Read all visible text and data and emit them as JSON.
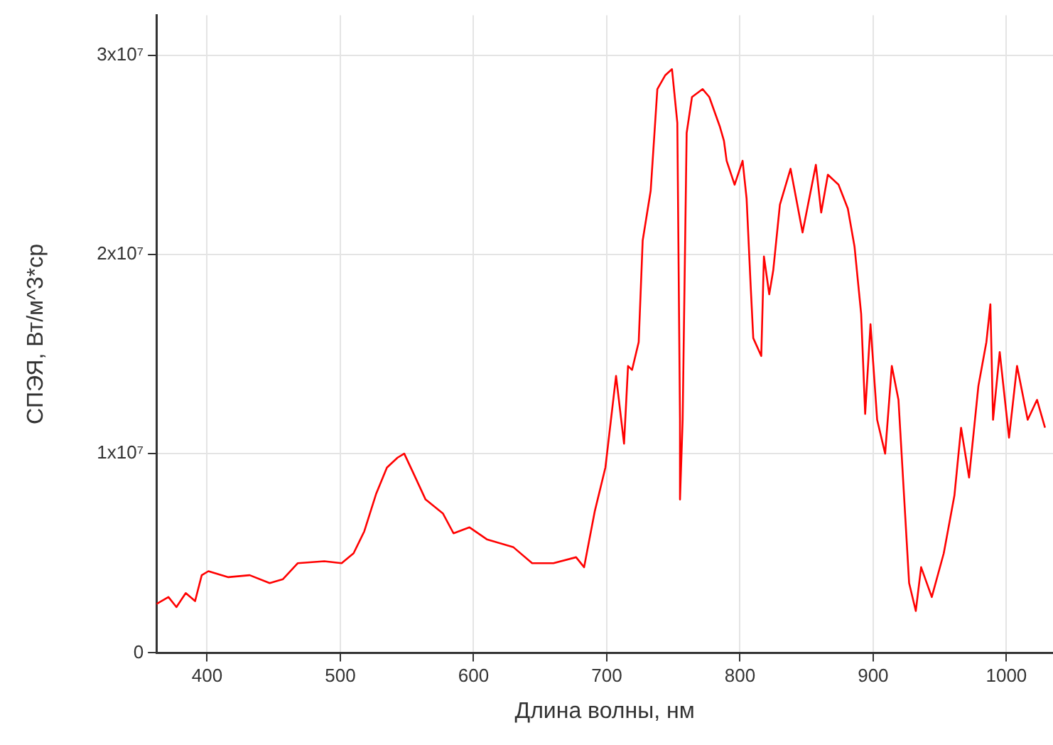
{
  "chart_data": {
    "type": "line",
    "xlabel": "Длина волны, нм",
    "ylabel": "СПЭЯ, Вт/м^3*ср",
    "xlim": [
      362,
      1035
    ],
    "ylim": [
      0,
      32000000
    ],
    "xticks": [
      400,
      500,
      600,
      700,
      800,
      900,
      1000
    ],
    "yticks": [
      0,
      {
        "value": 10000000,
        "label": "1x10⁷"
      },
      {
        "value": 20000000,
        "label": "2x10⁷"
      },
      {
        "value": 30000000,
        "label": "3x10⁷"
      }
    ],
    "grid": true,
    "series": [
      {
        "color": "#ff0000",
        "x": [
          362,
          371,
          377,
          384,
          391,
          396,
          401,
          416,
          432,
          447,
          457,
          468,
          488,
          501,
          510,
          518,
          527,
          535,
          543,
          548,
          555,
          564,
          577,
          585,
          597,
          610,
          630,
          644,
          660,
          677,
          683,
          691,
          699,
          707,
          713,
          716,
          719,
          724,
          727,
          733,
          738,
          744,
          749,
          753,
          755,
          755,
          757,
          760,
          764,
          772,
          777,
          785,
          788,
          790,
          796,
          802,
          805,
          808,
          810,
          816,
          818,
          822,
          825,
          830,
          838,
          847,
          857,
          861,
          866,
          874,
          881,
          886,
          891,
          894,
          898,
          903,
          909,
          914,
          919,
          927,
          932,
          936,
          944,
          953,
          961,
          966,
          972,
          979,
          985,
          988,
          990,
          995,
          1002,
          1008,
          1016,
          1023,
          1029
        ],
        "values": [
          2450000,
          2800000,
          2300000,
          3000000,
          2600000,
          3900000,
          4100000,
          3800000,
          3900000,
          3500000,
          3700000,
          4500000,
          4600000,
          4500000,
          5000000,
          6100000,
          8000000,
          9300000,
          9800000,
          10000000,
          9000000,
          7700000,
          7000000,
          6000000,
          6300000,
          5700000,
          5300000,
          4500000,
          4500000,
          4800000,
          4300000,
          7100000,
          9300000,
          13900000,
          10500000,
          14400000,
          14200000,
          15600000,
          20700000,
          23200000,
          28300000,
          29000000,
          29300000,
          26600000,
          11700000,
          7700000,
          11700000,
          26100000,
          27900000,
          28300000,
          27900000,
          26400000,
          25700000,
          24700000,
          23500000,
          24700000,
          22800000,
          18500000,
          15800000,
          14900000,
          19900000,
          18000000,
          19200000,
          22500000,
          24300000,
          21100000,
          24500000,
          22100000,
          24000000,
          23500000,
          22300000,
          20400000,
          17000000,
          12000000,
          16500000,
          11700000,
          10000000,
          14400000,
          12700000,
          3500000,
          2100000,
          4300000,
          2800000,
          5000000,
          7900000,
          11300000,
          8800000,
          13400000,
          15600000,
          17500000,
          11700000,
          15100000,
          10800000,
          14400000,
          11700000,
          12700000,
          11300000
        ]
      }
    ]
  }
}
